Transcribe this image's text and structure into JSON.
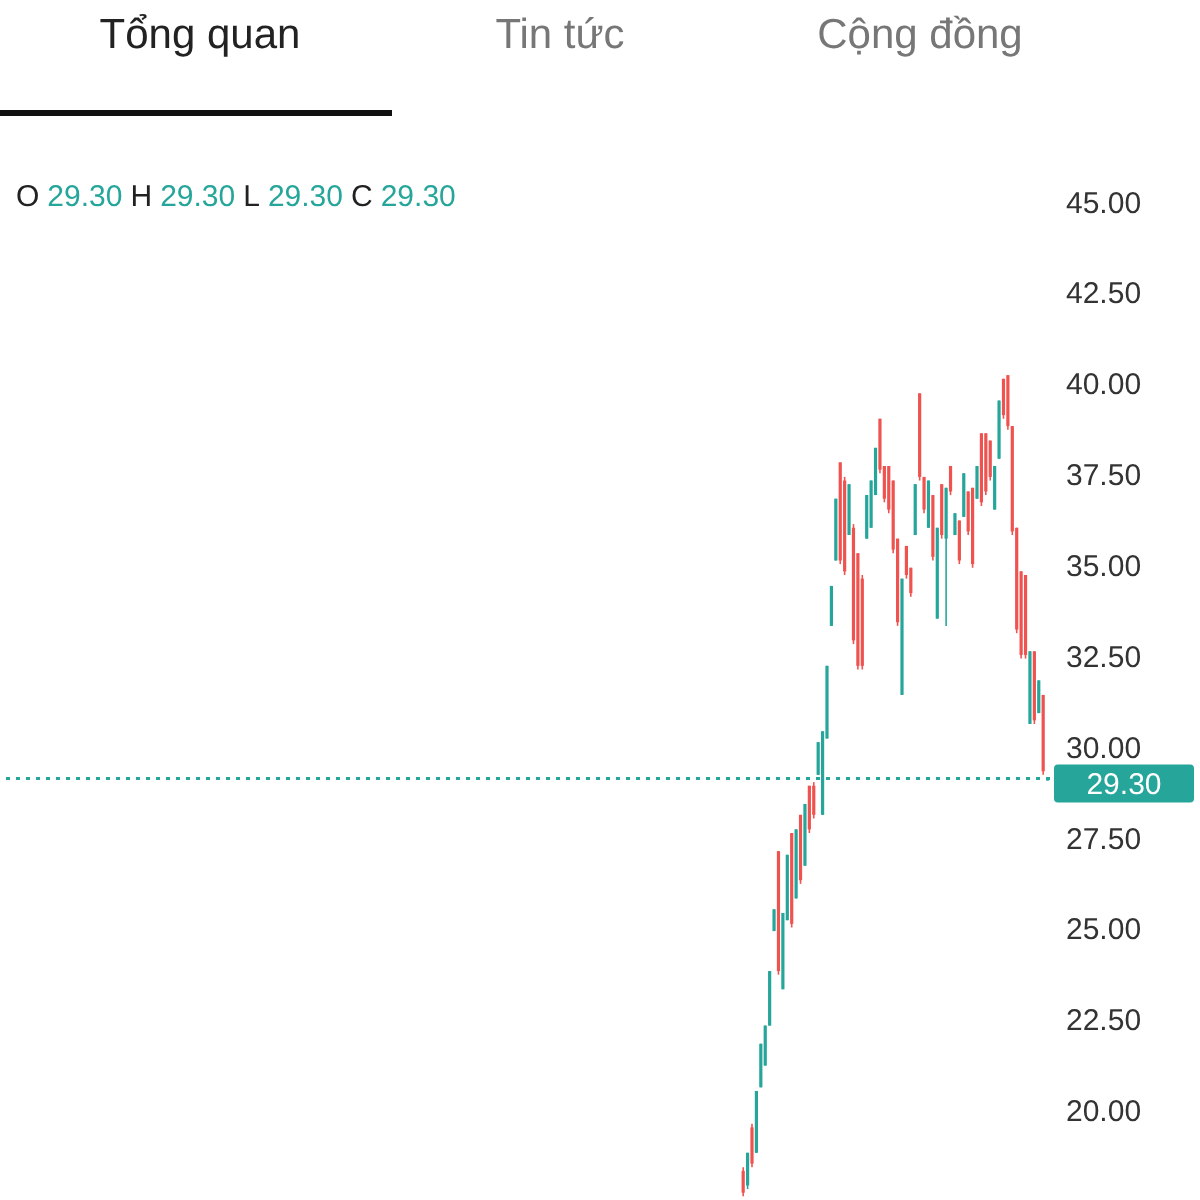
{
  "chart_data": {
    "type": "candlestick",
    "annotations": [
      "Tổng quan",
      "Tin tức",
      "Cộng đồng",
      "O 29.30 H 29.30 L 29.30 C 29.30"
    ],
    "categories": [
      null,
      null,
      null,
      null,
      null,
      null,
      null,
      null,
      null,
      null,
      null,
      null,
      null,
      null,
      null,
      null,
      null,
      null,
      null,
      null,
      null,
      null,
      null,
      null,
      null,
      null,
      null,
      null,
      null,
      null,
      null,
      null,
      null,
      null,
      null,
      null,
      null,
      null,
      null,
      null,
      null,
      null,
      null,
      null,
      null,
      null,
      null,
      null,
      null,
      null,
      null,
      null,
      null,
      null,
      null,
      null,
      null,
      null,
      null,
      null,
      null,
      null,
      null,
      null,
      null,
      null,
      null,
      null,
      null,
      null,
      null,
      null,
      null,
      null,
      null,
      null,
      null,
      null,
      null,
      null,
      null,
      null,
      null,
      null,
      null,
      null,
      null,
      null,
      null,
      null,
      null,
      null,
      null,
      null,
      null,
      null,
      null,
      null,
      null,
      null,
      null,
      null,
      null,
      null,
      null,
      null,
      null,
      null,
      null,
      null,
      null,
      null,
      null,
      null,
      null,
      null,
      null,
      null,
      null,
      null,
      null,
      null,
      null,
      null,
      null,
      null,
      null,
      null,
      null,
      null,
      null,
      null,
      null,
      null,
      null,
      null,
      null,
      null,
      null,
      null,
      null,
      null,
      null,
      null,
      null,
      null,
      null,
      null,
      null,
      null,
      null,
      null,
      null,
      null,
      null,
      null,
      null,
      null,
      null,
      null,
      null,
      null,
      null,
      null,
      null,
      null,
      null,
      null,
      null,
      null,
      null,
      null,
      null,
      null,
      null,
      null,
      null,
      null,
      null,
      null,
      null,
      null,
      null,
      null,
      null,
      null,
      null,
      null,
      null,
      null,
      null,
      null,
      null,
      null,
      null,
      null,
      null,
      null,
      null,
      null,
      null,
      null,
      null,
      null,
      null,
      null,
      null,
      null,
      null,
      null,
      null,
      null,
      null,
      null,
      null,
      null,
      null,
      null,
      null,
      null,
      null,
      null,
      null,
      null,
      null,
      null,
      null,
      null,
      null,
      null,
      null,
      null,
      null,
      null,
      null,
      null,
      null,
      null
    ],
    "ohlc": [
      null,
      null,
      null,
      null,
      null,
      null,
      null,
      null,
      null,
      null,
      null,
      null,
      null,
      null,
      null,
      null,
      null,
      null,
      null,
      null,
      null,
      null,
      null,
      null,
      null,
      null,
      null,
      null,
      null,
      null,
      null,
      null,
      null,
      null,
      null,
      null,
      null,
      null,
      null,
      null,
      null,
      null,
      null,
      null,
      null,
      null,
      null,
      null,
      null,
      null,
      null,
      null,
      null,
      null,
      null,
      null,
      null,
      null,
      null,
      null,
      null,
      null,
      null,
      null,
      null,
      null,
      null,
      null,
      null,
      null,
      null,
      null,
      null,
      null,
      null,
      null,
      null,
      null,
      null,
      null,
      null,
      null,
      null,
      null,
      null,
      null,
      null,
      null,
      null,
      null,
      null,
      null,
      null,
      null,
      null,
      null,
      null,
      null,
      null,
      null,
      null,
      null,
      null,
      null,
      null,
      null,
      null,
      null,
      null,
      null,
      null,
      null,
      null,
      null,
      null,
      null,
      null,
      null,
      null,
      null,
      null,
      null,
      null,
      null,
      null,
      null,
      null,
      null,
      null,
      null,
      null,
      null,
      null,
      null,
      null,
      null,
      null,
      null,
      null,
      null,
      null,
      null,
      null,
      null,
      null,
      null,
      null,
      null,
      null,
      null,
      null,
      null,
      null,
      null,
      null,
      null,
      null,
      null,
      null,
      null,
      null,
      null,
      null,
      null,
      null,
      null,
      null,
      null,
      [
        18.5,
        18.6,
        17.8,
        17.9
      ],
      [
        18.1,
        19.0,
        18.0,
        19.0
      ],
      [
        19.7,
        19.8,
        18.6,
        18.7
      ],
      [
        19.0,
        20.7,
        19.0,
        20.7
      ],
      [
        20.8,
        22.0,
        20.8,
        22.0
      ],
      [
        21.4,
        22.5,
        21.4,
        22.5
      ],
      [
        22.5,
        24.0,
        22.5,
        24.0
      ],
      [
        25.1,
        25.7,
        25.1,
        25.7
      ],
      [
        27.3,
        27.3,
        23.9,
        24.0
      ],
      [
        23.5,
        25.6,
        23.5,
        25.6
      ],
      [
        25.4,
        27.2,
        25.4,
        27.2
      ],
      [
        27.8,
        27.8,
        25.2,
        25.3
      ],
      [
        26.0,
        27.9,
        26.0,
        27.9
      ],
      [
        28.3,
        28.3,
        26.4,
        26.5
      ],
      [
        26.9,
        28.6,
        26.9,
        28.6
      ],
      [
        29.1,
        29.1,
        27.8,
        27.9
      ],
      [
        29.1,
        29.2,
        28.2,
        28.3
      ],
      [
        29.4,
        30.3,
        29.4,
        30.3
      ],
      [
        28.3,
        30.6,
        28.3,
        30.6
      ],
      [
        30.4,
        32.4,
        30.4,
        32.4
      ],
      [
        33.5,
        34.6,
        33.5,
        34.6
      ],
      [
        35.3,
        37.0,
        35.3,
        37.0
      ],
      [
        38.0,
        38.0,
        35.2,
        35.3
      ],
      [
        37.5,
        37.6,
        34.9,
        35.0
      ],
      [
        36.0,
        37.4,
        36.0,
        37.4
      ],
      [
        36.2,
        36.3,
        33.0,
        33.1
      ],
      [
        35.5,
        35.5,
        32.3,
        32.4
      ],
      [
        34.8,
        34.9,
        32.3,
        32.4
      ],
      [
        35.9,
        37.1,
        35.9,
        37.1
      ],
      [
        36.2,
        37.5,
        36.2,
        37.5
      ],
      [
        37.1,
        38.4,
        37.1,
        38.4
      ],
      [
        39.2,
        39.2,
        37.7,
        37.8
      ],
      [
        37.9,
        37.9,
        36.9,
        37.0
      ],
      [
        37.9,
        37.9,
        36.6,
        36.7
      ],
      [
        37.5,
        37.5,
        35.5,
        35.6
      ],
      [
        35.9,
        35.9,
        33.5,
        33.6
      ],
      [
        31.6,
        34.8,
        31.6,
        34.8
      ],
      [
        35.7,
        35.7,
        34.8,
        34.9
      ],
      [
        35.1,
        35.1,
        34.3,
        34.4
      ],
      [
        36.0,
        37.4,
        36.0,
        37.4
      ],
      [
        39.9,
        39.9,
        37.5,
        37.6
      ],
      [
        37.6,
        37.6,
        36.6,
        36.7
      ],
      [
        36.2,
        37.5,
        36.2,
        37.5
      ],
      [
        37.1,
        37.1,
        35.3,
        35.4
      ],
      [
        33.7,
        36.2,
        33.7,
        36.2
      ],
      [
        37.4,
        37.4,
        35.9,
        36.0
      ],
      [
        35.9,
        37.3,
        33.5,
        37.3
      ],
      [
        37.9,
        37.9,
        37.1,
        37.2
      ],
      [
        36.0,
        36.6,
        36.0,
        36.6
      ],
      [
        36.4,
        36.4,
        35.2,
        35.3
      ],
      [
        36.5,
        37.7,
        36.5,
        37.7
      ],
      [
        37.2,
        37.2,
        36.0,
        36.1
      ],
      [
        37.3,
        37.3,
        35.1,
        35.2
      ],
      [
        37.0,
        37.9,
        37.0,
        37.9
      ],
      [
        38.8,
        38.8,
        36.8,
        36.9
      ],
      [
        38.8,
        38.8,
        37.1,
        37.2
      ],
      [
        38.6,
        38.6,
        37.5,
        37.6
      ],
      [
        36.7,
        37.9,
        36.7,
        37.9
      ],
      [
        38.1,
        39.7,
        38.1,
        39.7
      ],
      [
        40.3,
        40.3,
        39.2,
        39.3
      ],
      [
        40.4,
        40.4,
        38.9,
        39.0
      ],
      [
        39.0,
        39.0,
        36.0,
        36.1
      ],
      [
        36.2,
        36.2,
        33.3,
        33.4
      ],
      [
        35.0,
        35.0,
        32.6,
        32.7
      ],
      [
        34.9,
        34.9,
        32.6,
        32.7
      ],
      [
        30.8,
        32.8,
        30.8,
        32.8
      ],
      [
        32.8,
        32.8,
        30.8,
        30.9
      ],
      [
        31.1,
        32.0,
        31.1,
        32.0
      ],
      [
        31.6,
        31.6,
        29.4,
        29.5
      ],
      [
        29.3,
        29.3,
        29.3,
        29.3
      ]
    ],
    "colors": [
      null,
      null,
      null,
      null,
      null,
      null,
      null,
      null,
      null,
      null,
      null,
      null,
      null,
      null,
      null,
      null,
      null,
      null,
      null,
      null,
      null,
      null,
      null,
      null,
      null,
      null,
      null,
      null,
      null,
      null,
      null,
      null,
      null,
      null,
      null,
      null,
      null,
      null,
      null,
      null,
      null,
      null,
      null,
      null,
      null,
      null,
      null,
      null,
      null,
      null,
      null,
      null,
      null,
      null,
      null,
      null,
      null,
      null,
      null,
      null,
      null,
      null,
      null,
      null,
      null,
      null,
      null,
      null,
      null,
      null,
      null,
      null,
      null,
      null,
      null,
      null,
      null,
      null,
      null,
      null,
      null,
      null,
      null,
      null,
      null,
      null,
      null,
      null,
      null,
      null,
      null,
      null,
      null,
      null,
      null,
      null,
      null,
      null,
      null,
      null,
      null,
      null,
      null,
      null,
      null,
      null,
      null,
      null,
      null,
      null,
      null,
      null,
      null,
      null,
      null,
      null,
      null,
      null,
      null,
      null,
      null,
      null,
      null,
      null,
      null,
      null,
      null,
      null,
      null,
      null,
      null,
      null,
      null,
      null,
      null,
      null,
      null,
      null,
      null,
      null,
      null,
      null,
      null,
      null,
      null,
      null,
      null,
      null,
      null,
      null,
      null,
      null,
      null,
      null,
      null,
      null,
      null,
      null,
      null,
      null,
      null,
      null,
      null,
      null,
      null,
      null,
      null,
      null,
      "#ef5350",
      "#26a69a",
      "#ef5350",
      "#26a69a",
      "#26a69a",
      "#26a69a",
      "#26a69a",
      "#26a69a",
      "#ef5350",
      "#26a69a",
      "#26a69a",
      "#ef5350",
      "#26a69a",
      "#ef5350",
      "#26a69a",
      "#ef5350",
      "#ef5350",
      "#26a69a",
      "#26a69a",
      "#26a69a",
      "#26a69a",
      "#26a69a",
      "#ef5350",
      "#ef5350",
      "#26a69a",
      "#ef5350",
      "#ef5350",
      "#ef5350",
      "#26a69a",
      "#26a69a",
      "#26a69a",
      "#ef5350",
      "#ef5350",
      "#ef5350",
      "#ef5350",
      "#ef5350",
      "#26a69a",
      "#ef5350",
      "#ef5350",
      "#26a69a",
      "#ef5350",
      "#ef5350",
      "#26a69a",
      "#ef5350",
      "#26a69a",
      "#ef5350",
      "#26a69a",
      "#ef5350",
      "#26a69a",
      "#ef5350",
      "#26a69a",
      "#ef5350",
      "#ef5350",
      "#26a69a",
      "#ef5350",
      "#ef5350",
      "#ef5350",
      "#26a69a",
      "#26a69a",
      "#ef5350",
      "#ef5350",
      "#ef5350",
      "#ef5350",
      "#ef5350",
      "#ef5350",
      "#26a69a",
      "#ef5350",
      "#26a69a",
      "#ef5350",
      "#26a69a"
    ],
    "ylim": [
      17.7,
      45
    ],
    "yticks": [
      {
        "value": 20,
        "label": "20.00"
      },
      {
        "value": 22.5,
        "label": "22.50"
      },
      {
        "value": 25,
        "label": "25.00"
      },
      {
        "value": 27.5,
        "label": "27.50"
      },
      {
        "value": 30,
        "label": "30.00"
      },
      {
        "value": 32.5,
        "label": "32.50"
      },
      {
        "value": 35,
        "label": "35.00"
      },
      {
        "value": 37.5,
        "label": "37.50"
      },
      {
        "value": 40,
        "label": "40.00"
      },
      {
        "value": 42.5,
        "label": "42.50"
      },
      {
        "value": 45,
        "label": "45.00"
      }
    ],
    "ref_lines": [
      {
        "axis": "y",
        "value": 29.3,
        "label": "29.30",
        "color": "#26a69a",
        "line_style": "dotted"
      }
    ],
    "tick_labels": "y",
    "grid": false,
    "legend": false
  }
}
